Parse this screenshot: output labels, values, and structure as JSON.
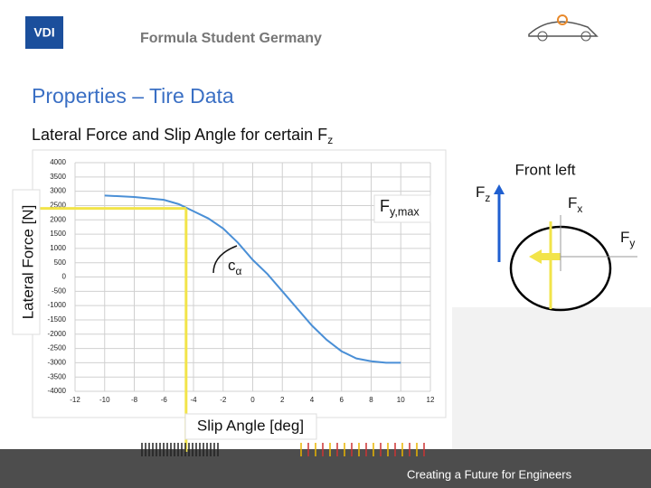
{
  "header": {
    "logo": "VDI",
    "brand": "Formula Student Germany"
  },
  "slide_title": "Properties – Tire Data",
  "subtitle": {
    "text": "Lateral Force and Slip Angle for certain F",
    "sub": "z"
  },
  "footer": "Creating a Future for Engineers",
  "chart_data": {
    "type": "line",
    "x": [
      -10,
      -8,
      -6,
      -5,
      -4,
      -3,
      -2,
      -1,
      0,
      1,
      2,
      3,
      4,
      5,
      6,
      7,
      8,
      9,
      10
    ],
    "series": [
      {
        "color": "#4a8fd6",
        "values": [
          2850,
          2800,
          2700,
          2550,
          2300,
          2050,
          1700,
          1200,
          600,
          100,
          -500,
          -1100,
          -1700,
          -2200,
          -2600,
          -2850,
          -2950,
          -3000,
          -3000
        ]
      }
    ],
    "xlim": [
      -12,
      12
    ],
    "xticks": [
      -12,
      -10,
      -8,
      -6,
      -4,
      -2,
      0,
      2,
      4,
      6,
      8,
      10,
      12
    ],
    "ylim": [
      -4000,
      4000
    ],
    "yticks": [
      -4000,
      -3500,
      -3000,
      -2500,
      -2000,
      -1500,
      -1000,
      -500,
      0,
      500,
      1000,
      1500,
      2000,
      2500,
      3000,
      3500,
      4000
    ],
    "grid": true,
    "x_label": "Slip Angle [deg]",
    "y_label": "Lateral Force [N]",
    "annotations": [
      {
        "text": "F",
        "sub": "y,max"
      },
      {
        "text": "c",
        "sub": "α"
      }
    ],
    "peak": {
      "x": -4.5,
      "y": 2400,
      "color": "#f2e44a"
    }
  },
  "tire_diagram": {
    "title": "Front left",
    "forces": [
      {
        "text": "F",
        "sub": "z"
      },
      {
        "text": "F",
        "sub": "x"
      },
      {
        "text": "F",
        "sub": "y"
      }
    ]
  }
}
